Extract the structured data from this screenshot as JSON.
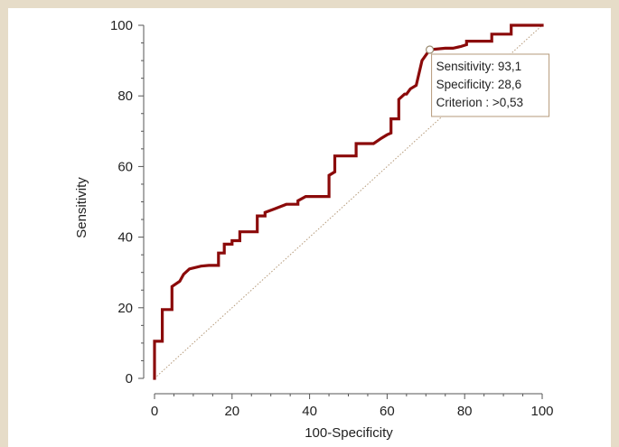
{
  "chart_data": {
    "type": "line",
    "xlabel": "100-Specificity",
    "ylabel": "Sensitivity",
    "xlim": [
      0,
      100
    ],
    "ylim": [
      0,
      100
    ],
    "x_ticks": [
      0,
      20,
      40,
      60,
      80,
      100
    ],
    "y_ticks": [
      0,
      20,
      40,
      60,
      80,
      100
    ],
    "colors": {
      "roc": "#8b0a0a",
      "diagonal": "#b59a7a",
      "annotation_border": "#b59a7a",
      "background": "#e6dcc8"
    },
    "series": [
      {
        "type": "step",
        "values": [
          [
            0,
            0
          ],
          [
            0,
            10.5
          ],
          [
            2,
            10.5
          ],
          [
            2,
            19.5
          ],
          [
            4.5,
            19.5
          ],
          [
            4.5,
            26
          ],
          [
            6.5,
            27.5
          ],
          [
            7.5,
            29.5
          ],
          [
            9,
            31
          ],
          [
            12,
            31.8
          ],
          [
            14,
            32
          ],
          [
            16.5,
            32
          ],
          [
            16.5,
            35.5
          ],
          [
            18,
            35.5
          ],
          [
            18,
            38
          ],
          [
            20,
            38
          ],
          [
            20,
            39
          ],
          [
            22,
            39
          ],
          [
            22,
            41.5
          ],
          [
            26.5,
            41.5
          ],
          [
            26.5,
            46
          ],
          [
            28.5,
            46
          ],
          [
            28.5,
            47
          ],
          [
            31,
            48
          ],
          [
            34,
            49.3
          ],
          [
            37,
            49.3
          ],
          [
            37,
            50.3
          ],
          [
            39,
            51.5
          ],
          [
            45,
            51.5
          ],
          [
            45,
            57.5
          ],
          [
            46.5,
            58.5
          ],
          [
            46.5,
            63
          ],
          [
            52,
            63
          ],
          [
            52,
            66.5
          ],
          [
            56.5,
            66.5
          ],
          [
            58.5,
            68
          ],
          [
            60,
            69
          ],
          [
            61,
            69.5
          ],
          [
            61,
            73.5
          ],
          [
            63,
            73.5
          ],
          [
            63,
            79
          ],
          [
            64.5,
            80.5
          ],
          [
            65,
            80.5
          ],
          [
            66,
            82
          ],
          [
            67.5,
            83
          ],
          [
            69,
            90
          ],
          [
            71,
            93.1
          ],
          [
            75,
            93.5
          ],
          [
            77,
            93.5
          ],
          [
            79,
            94
          ],
          [
            80.5,
            94.5
          ],
          [
            80.5,
            95.5
          ],
          [
            87,
            95.5
          ],
          [
            87,
            97.5
          ],
          [
            92,
            97.5
          ],
          [
            92,
            100
          ],
          [
            100,
            100
          ]
        ]
      },
      {
        "type": "reference",
        "values": [
          [
            0,
            0
          ],
          [
            100,
            100
          ]
        ]
      }
    ],
    "annotation": {
      "point": [
        71,
        93.1
      ],
      "lines": [
        "Sensitivity: 93,1",
        "Specificity: 28,6",
        "Criterion : >0,53"
      ]
    }
  }
}
